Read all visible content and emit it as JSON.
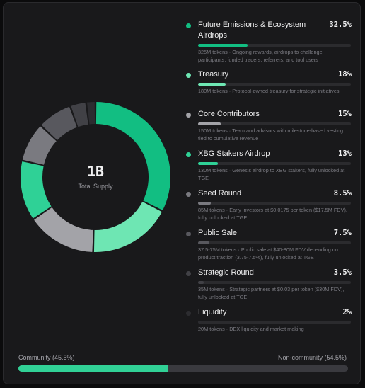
{
  "donut": {
    "center_value": "1B",
    "center_label": "Total Supply",
    "slices": [
      {
        "value": 32.5,
        "color": "#12be82"
      },
      {
        "value": 18,
        "color": "#6ee6b3"
      },
      {
        "value": 15,
        "color": "#a3a3a8"
      },
      {
        "value": 13,
        "color": "#2fd196"
      },
      {
        "value": 8.5,
        "color": "#7a7a80"
      },
      {
        "value": 7.5,
        "color": "#58585e"
      },
      {
        "value": 3.5,
        "color": "#414146"
      },
      {
        "value": 2,
        "color": "#2c2c30"
      }
    ]
  },
  "allocations": [
    {
      "name": "Future Emissions & Ecosystem Airdrops",
      "percent": "32.5%",
      "value": 32.5,
      "color": "#12be82",
      "description": "325M tokens · Ongoing rewards, airdrops to challenge participants, funded traders, referrers, and tool users"
    },
    {
      "name": "Treasury",
      "percent": "18%",
      "value": 18,
      "color": "#6ee6b3",
      "description": "180M tokens · Protocol-owned treasury for strategic initiatives"
    },
    {
      "name": "Core Contributors",
      "percent": "15%",
      "value": 15,
      "color": "#a3a3a8",
      "description": "150M tokens · Team and advisors with milestone-based vesting tied to cumulative revenue"
    },
    {
      "name": "XBG Stakers Airdrop",
      "percent": "13%",
      "value": 13,
      "color": "#2fd196",
      "description": "130M tokens · Genesis airdrop to XBG stakers, fully unlocked at TGE"
    },
    {
      "name": "Seed Round",
      "percent": "8.5%",
      "value": 8.5,
      "color": "#7a7a80",
      "description": "85M tokens · Early investors at $0.0175 per token ($17.5M FDV), fully unlocked at TGE"
    },
    {
      "name": "Public Sale",
      "percent": "7.5%",
      "value": 7.5,
      "color": "#58585e",
      "description": "37.5-75M tokens · Public sale at $40-80M FDV depending on product traction (3.75-7.5%), fully unlocked at TGE"
    },
    {
      "name": "Strategic Round",
      "percent": "3.5%",
      "value": 3.5,
      "color": "#414146",
      "description": "35M tokens · Strategic partners at $0.03 per token ($30M FDV), fully unlocked at TGE"
    },
    {
      "name": "Liquidity",
      "percent": "2%",
      "value": 2,
      "color": "#2c2c30",
      "description": "20M tokens · DEX liquidity and market making"
    }
  ],
  "footer": {
    "community_label": "Community (45.5%)",
    "non_community_label": "Non-community (54.5%)",
    "community_fraction": 0.455
  }
}
